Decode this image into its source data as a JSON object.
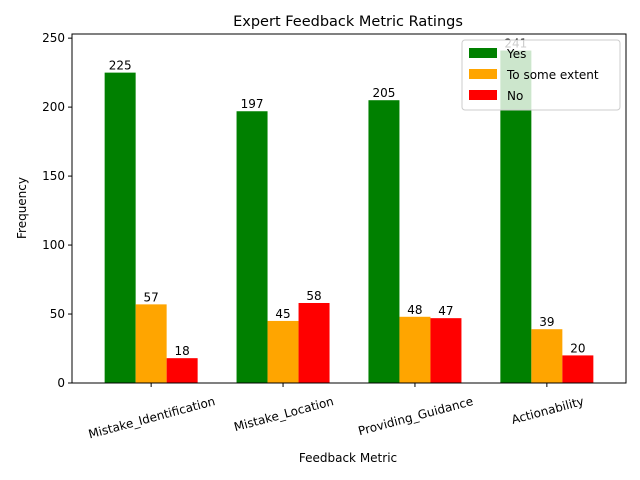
{
  "chart_data": {
    "type": "bar",
    "title": "Expert Feedback Metric Ratings",
    "xlabel": "Feedback Metric",
    "ylabel": "Frequency",
    "categories": [
      "Mistake_Identification",
      "Mistake_Location",
      "Providing_Guidance",
      "Actionability"
    ],
    "series": [
      {
        "name": "Yes",
        "color": "#008000",
        "values": [
          225,
          197,
          205,
          241
        ]
      },
      {
        "name": "To some extent",
        "color": "#FFA500",
        "values": [
          57,
          45,
          48,
          39
        ]
      },
      {
        "name": "No",
        "color": "#FF0000",
        "values": [
          18,
          58,
          47,
          20
        ]
      }
    ],
    "ylim": [
      0,
      253
    ],
    "yticks": [
      0,
      50,
      100,
      150,
      200,
      250
    ],
    "grid": false,
    "legend_position": "top-right",
    "xtick_rotation_deg": 15
  }
}
